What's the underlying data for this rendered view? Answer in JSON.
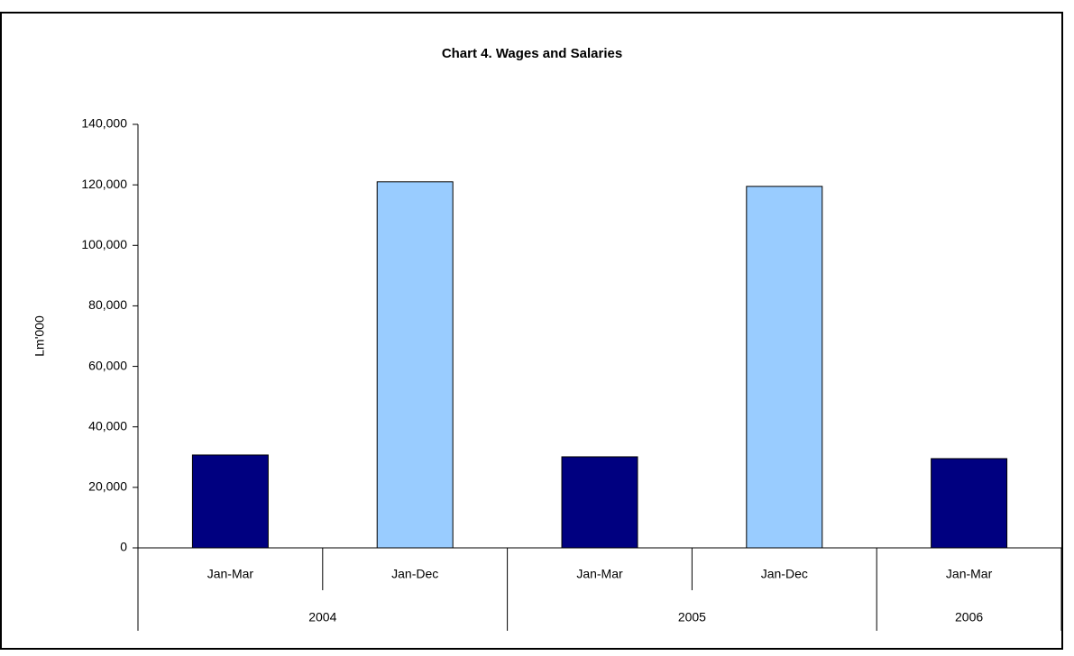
{
  "chart_data": {
    "type": "bar",
    "title": "Chart 4.  Wages and Salaries",
    "y_label": "Lm'000",
    "categories": [
      "Jan-Mar",
      "Jan-Dec",
      "Jan-Mar",
      "Jan-Dec",
      "Jan-Mar"
    ],
    "groups": [
      {
        "label": "2004",
        "span": 2
      },
      {
        "label": "2005",
        "span": 2
      },
      {
        "label": "2006",
        "span": 1
      }
    ],
    "values": [
      30700,
      121000,
      30100,
      119500,
      29500
    ],
    "colors": [
      "#000080",
      "#99ccff",
      "#000080",
      "#99ccff",
      "#000080"
    ],
    "ylim": [
      0,
      140000
    ],
    "yticks": [
      0,
      {
        "value": 20000,
        "label": "20,000"
      },
      {
        "value": 40000,
        "label": "40,000"
      },
      {
        "value": 60000,
        "label": "60,000"
      },
      {
        "value": 80000,
        "label": "80,000"
      },
      {
        "value": 100000,
        "label": "100,000"
      },
      {
        "value": 120000,
        "label": "120,000"
      },
      {
        "value": 140000,
        "label": "140,000"
      }
    ]
  }
}
